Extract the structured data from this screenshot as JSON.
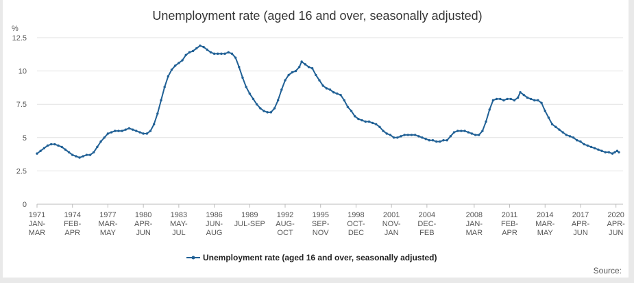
{
  "chart_data": {
    "type": "line",
    "title": "Unemployment rate (aged 16 and over, seasonally adjusted)",
    "ylabel": "%",
    "xlabel": "",
    "ylim": [
      0,
      12.5
    ],
    "yticks": [
      0,
      2.5,
      5,
      7.5,
      10,
      12.5
    ],
    "ytick_labels": [
      "0",
      "2.5",
      "5",
      "7.5",
      "10",
      "12.5"
    ],
    "xlim": [
      1971.0,
      2020.25
    ],
    "xticks": [
      {
        "x": 1971,
        "lines": [
          "1971",
          "JAN-",
          "MAR"
        ]
      },
      {
        "x": 1974,
        "lines": [
          "1974",
          "FEB-",
          "APR"
        ]
      },
      {
        "x": 1977,
        "lines": [
          "1977",
          "MAR-",
          "MAY"
        ]
      },
      {
        "x": 1980,
        "lines": [
          "1980",
          "APR-",
          "JUN"
        ]
      },
      {
        "x": 1983,
        "lines": [
          "1983",
          "MAY-",
          "JUL"
        ]
      },
      {
        "x": 1986,
        "lines": [
          "1986",
          "JUN-",
          "AUG"
        ]
      },
      {
        "x": 1989,
        "lines": [
          "1989",
          "JUL-SEP"
        ]
      },
      {
        "x": 1992,
        "lines": [
          "1992",
          "AUG-",
          "OCT"
        ]
      },
      {
        "x": 1995,
        "lines": [
          "1995",
          "SEP-",
          "NOV"
        ]
      },
      {
        "x": 1998,
        "lines": [
          "1998",
          "OCT-",
          "DEC"
        ]
      },
      {
        "x": 2001,
        "lines": [
          "2001",
          "NOV-",
          "JAN"
        ]
      },
      {
        "x": 2004,
        "lines": [
          "2004",
          "DEC-",
          "FEB"
        ]
      },
      {
        "x": 2008,
        "lines": [
          "2008",
          "JAN-",
          "MAR"
        ]
      },
      {
        "x": 2011,
        "lines": [
          "2011",
          "FEB-",
          "APR"
        ]
      },
      {
        "x": 2014,
        "lines": [
          "2014",
          "MAR-",
          "MAY"
        ]
      },
      {
        "x": 2017,
        "lines": [
          "2017",
          "APR-",
          "JUN"
        ]
      },
      {
        "x": 2020,
        "lines": [
          "2020",
          "APR-",
          "JUN"
        ]
      }
    ],
    "series": [
      {
        "name": "Unemployment rate (aged 16 and over, seasonally adjusted)",
        "color": "#206095",
        "points": [
          [
            1971.0,
            3.8
          ],
          [
            1971.3,
            4.0
          ],
          [
            1971.6,
            4.2
          ],
          [
            1971.9,
            4.4
          ],
          [
            1972.2,
            4.5
          ],
          [
            1972.5,
            4.5
          ],
          [
            1972.8,
            4.4
          ],
          [
            1973.1,
            4.3
          ],
          [
            1973.4,
            4.1
          ],
          [
            1973.7,
            3.9
          ],
          [
            1974.0,
            3.7
          ],
          [
            1974.3,
            3.6
          ],
          [
            1974.6,
            3.5
          ],
          [
            1974.9,
            3.6
          ],
          [
            1975.2,
            3.7
          ],
          [
            1975.5,
            3.7
          ],
          [
            1975.8,
            3.9
          ],
          [
            1976.1,
            4.3
          ],
          [
            1976.4,
            4.7
          ],
          [
            1976.7,
            5.0
          ],
          [
            1977.0,
            5.3
          ],
          [
            1977.3,
            5.4
          ],
          [
            1977.6,
            5.5
          ],
          [
            1977.9,
            5.5
          ],
          [
            1978.2,
            5.5
          ],
          [
            1978.5,
            5.6
          ],
          [
            1978.8,
            5.7
          ],
          [
            1979.1,
            5.6
          ],
          [
            1979.4,
            5.5
          ],
          [
            1979.7,
            5.4
          ],
          [
            1980.0,
            5.3
          ],
          [
            1980.3,
            5.3
          ],
          [
            1980.6,
            5.5
          ],
          [
            1980.9,
            6.0
          ],
          [
            1981.2,
            6.8
          ],
          [
            1981.5,
            7.8
          ],
          [
            1981.8,
            8.8
          ],
          [
            1982.1,
            9.6
          ],
          [
            1982.4,
            10.1
          ],
          [
            1982.7,
            10.4
          ],
          [
            1983.0,
            10.6
          ],
          [
            1983.3,
            10.8
          ],
          [
            1983.6,
            11.2
          ],
          [
            1983.9,
            11.4
          ],
          [
            1984.2,
            11.5
          ],
          [
            1984.5,
            11.7
          ],
          [
            1984.8,
            11.9
          ],
          [
            1985.1,
            11.8
          ],
          [
            1985.4,
            11.6
          ],
          [
            1985.7,
            11.4
          ],
          [
            1986.0,
            11.3
          ],
          [
            1986.3,
            11.3
          ],
          [
            1986.6,
            11.3
          ],
          [
            1986.9,
            11.3
          ],
          [
            1987.2,
            11.4
          ],
          [
            1987.5,
            11.3
          ],
          [
            1987.8,
            11.0
          ],
          [
            1988.1,
            10.3
          ],
          [
            1988.4,
            9.5
          ],
          [
            1988.7,
            8.8
          ],
          [
            1989.0,
            8.3
          ],
          [
            1989.3,
            7.9
          ],
          [
            1989.6,
            7.5
          ],
          [
            1989.9,
            7.2
          ],
          [
            1990.2,
            7.0
          ],
          [
            1990.5,
            6.9
          ],
          [
            1990.8,
            6.9
          ],
          [
            1991.1,
            7.2
          ],
          [
            1991.4,
            7.8
          ],
          [
            1991.7,
            8.6
          ],
          [
            1992.0,
            9.3
          ],
          [
            1992.3,
            9.7
          ],
          [
            1992.6,
            9.9
          ],
          [
            1992.9,
            10.0
          ],
          [
            1993.2,
            10.3
          ],
          [
            1993.4,
            10.7
          ],
          [
            1993.7,
            10.5
          ],
          [
            1994.0,
            10.3
          ],
          [
            1994.3,
            10.2
          ],
          [
            1994.6,
            9.7
          ],
          [
            1994.9,
            9.3
          ],
          [
            1995.2,
            8.9
          ],
          [
            1995.5,
            8.7
          ],
          [
            1995.8,
            8.6
          ],
          [
            1996.1,
            8.4
          ],
          [
            1996.4,
            8.3
          ],
          [
            1996.7,
            8.2
          ],
          [
            1997.0,
            7.8
          ],
          [
            1997.3,
            7.3
          ],
          [
            1997.6,
            7.0
          ],
          [
            1997.9,
            6.6
          ],
          [
            1998.2,
            6.4
          ],
          [
            1998.5,
            6.3
          ],
          [
            1998.8,
            6.2
          ],
          [
            1999.1,
            6.2
          ],
          [
            1999.4,
            6.1
          ],
          [
            1999.7,
            6.0
          ],
          [
            2000.0,
            5.8
          ],
          [
            2000.3,
            5.5
          ],
          [
            2000.6,
            5.3
          ],
          [
            2000.9,
            5.2
          ],
          [
            2001.2,
            5.0
          ],
          [
            2001.5,
            5.0
          ],
          [
            2001.8,
            5.1
          ],
          [
            2002.1,
            5.2
          ],
          [
            2002.4,
            5.2
          ],
          [
            2002.7,
            5.2
          ],
          [
            2003.0,
            5.2
          ],
          [
            2003.3,
            5.1
          ],
          [
            2003.6,
            5.0
          ],
          [
            2003.9,
            4.9
          ],
          [
            2004.2,
            4.8
          ],
          [
            2004.5,
            4.8
          ],
          [
            2004.8,
            4.7
          ],
          [
            2005.1,
            4.7
          ],
          [
            2005.4,
            4.8
          ],
          [
            2005.7,
            4.8
          ],
          [
            2006.0,
            5.1
          ],
          [
            2006.3,
            5.4
          ],
          [
            2006.6,
            5.5
          ],
          [
            2006.9,
            5.5
          ],
          [
            2007.2,
            5.5
          ],
          [
            2007.5,
            5.4
          ],
          [
            2007.8,
            5.3
          ],
          [
            2008.1,
            5.2
          ],
          [
            2008.4,
            5.2
          ],
          [
            2008.7,
            5.5
          ],
          [
            2009.0,
            6.2
          ],
          [
            2009.3,
            7.1
          ],
          [
            2009.6,
            7.8
          ],
          [
            2009.9,
            7.9
          ],
          [
            2010.2,
            7.9
          ],
          [
            2010.5,
            7.8
          ],
          [
            2010.8,
            7.9
          ],
          [
            2011.1,
            7.9
          ],
          [
            2011.4,
            7.8
          ],
          [
            2011.7,
            8.0
          ],
          [
            2011.9,
            8.4
          ],
          [
            2012.2,
            8.2
          ],
          [
            2012.5,
            8.0
          ],
          [
            2012.8,
            7.9
          ],
          [
            2013.1,
            7.8
          ],
          [
            2013.4,
            7.8
          ],
          [
            2013.7,
            7.6
          ],
          [
            2014.0,
            7.0
          ],
          [
            2014.3,
            6.5
          ],
          [
            2014.6,
            6.0
          ],
          [
            2014.9,
            5.8
          ],
          [
            2015.2,
            5.6
          ],
          [
            2015.5,
            5.4
          ],
          [
            2015.8,
            5.2
          ],
          [
            2016.1,
            5.1
          ],
          [
            2016.4,
            5.0
          ],
          [
            2016.7,
            4.8
          ],
          [
            2017.0,
            4.7
          ],
          [
            2017.3,
            4.5
          ],
          [
            2017.6,
            4.4
          ],
          [
            2017.9,
            4.3
          ],
          [
            2018.2,
            4.2
          ],
          [
            2018.5,
            4.1
          ],
          [
            2018.8,
            4.0
          ],
          [
            2019.1,
            3.9
          ],
          [
            2019.4,
            3.9
          ],
          [
            2019.7,
            3.8
          ],
          [
            2019.9,
            3.9
          ],
          [
            2020.1,
            4.0
          ],
          [
            2020.25,
            3.9
          ]
        ]
      }
    ],
    "legend": {
      "position": "bottom-center",
      "label": "Unemployment rate (aged 16 and over, seasonally adjusted)"
    }
  },
  "footer": {
    "source_label": "Source:"
  }
}
